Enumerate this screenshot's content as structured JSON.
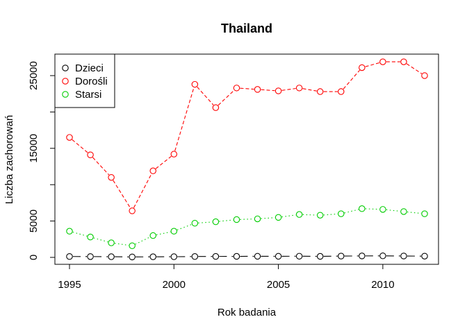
{
  "chart_data": {
    "type": "line",
    "title": "Thailand",
    "xlabel": "Rok badania",
    "ylabel": "Liczba zachorowań",
    "xlim": [
      1995,
      2012
    ],
    "ylim": [
      0,
      27000
    ],
    "x_ticks": [
      1995,
      2000,
      2005,
      2010
    ],
    "y_ticks": [
      0,
      5000,
      15000,
      25000
    ],
    "grid": false,
    "legend_position": "top-left",
    "x": [
      1995,
      1996,
      1997,
      1998,
      1999,
      2000,
      2001,
      2002,
      2003,
      2004,
      2005,
      2006,
      2007,
      2008,
      2009,
      2010,
      2011,
      2012
    ],
    "series": [
      {
        "name": "Dzieci",
        "color": "#000000",
        "line_style": "longdash",
        "values": [
          120,
          110,
          90,
          60,
          80,
          90,
          120,
          130,
          140,
          150,
          150,
          160,
          140,
          180,
          200,
          210,
          190,
          170
        ]
      },
      {
        "name": "Dorośli",
        "color": "#ff0000",
        "line_style": "dashed",
        "values": [
          16500,
          14100,
          11000,
          6400,
          11900,
          14200,
          23800,
          20600,
          23300,
          23100,
          22900,
          23300,
          22800,
          22800,
          26100,
          26900,
          26900,
          25000
        ]
      },
      {
        "name": "Starsi",
        "color": "#00cd00",
        "line_style": "dotted",
        "values": [
          3600,
          2800,
          2000,
          1600,
          3000,
          3600,
          4700,
          4900,
          5200,
          5300,
          5500,
          5900,
          5800,
          6000,
          6700,
          6600,
          6300,
          6000
        ]
      }
    ]
  }
}
